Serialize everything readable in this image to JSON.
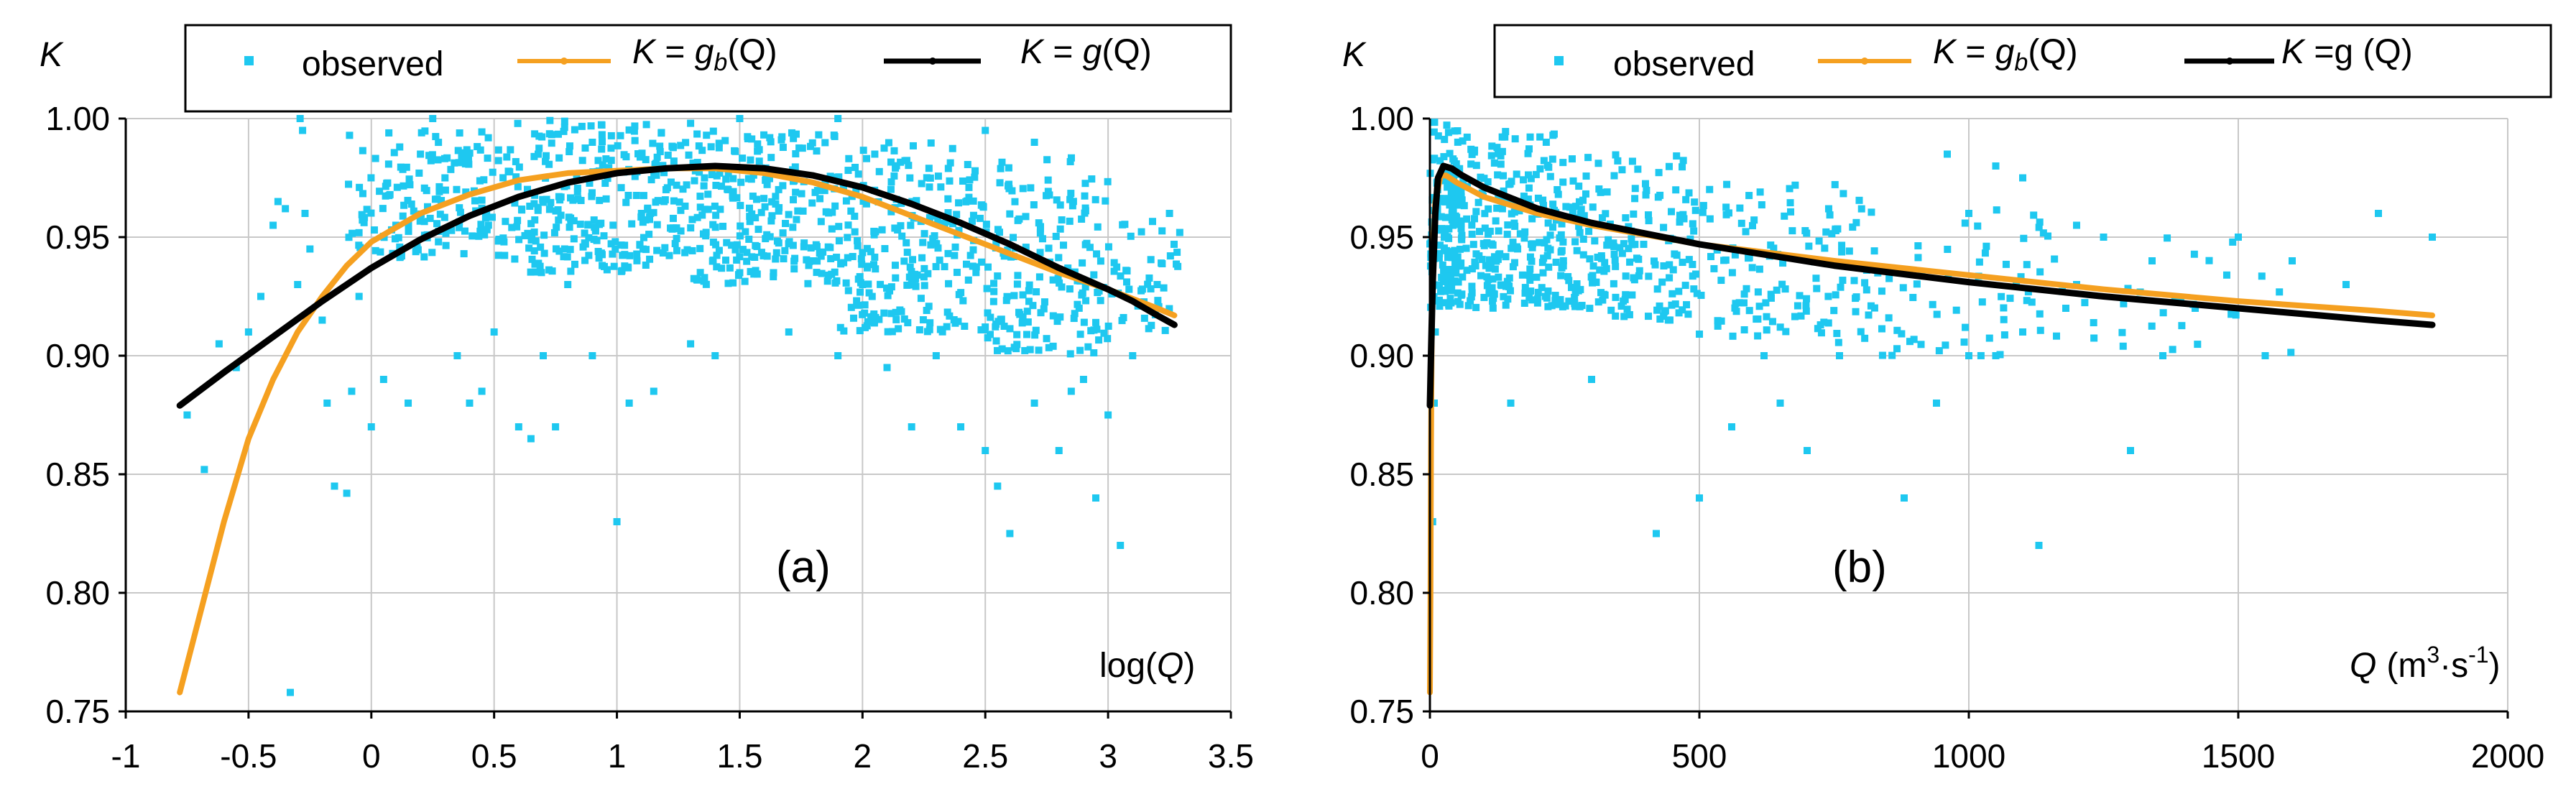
{
  "chart_data": [
    {
      "type": "scatter",
      "panel_label": "(a)",
      "ylabel": "K",
      "xlabel": {
        "pre": "log(",
        "var": "Q",
        "post": ")"
      },
      "xlim": [
        -1,
        3.5
      ],
      "ylim": [
        0.75,
        1.0
      ],
      "x_ticks": [
        "-1",
        "-0.5",
        "0",
        "0.5",
        "1",
        "1.5",
        "2",
        "2.5",
        "3",
        "3.5"
      ],
      "y_ticks": [
        "0.75",
        "0.80",
        "0.85",
        "0.90",
        "0.95",
        "1.00"
      ],
      "grid": true,
      "legend": {
        "placement": "top",
        "items": [
          {
            "key": "obs",
            "text": "observed",
            "color": "#1ec8f0"
          },
          {
            "key": "gb",
            "k": "K",
            "eq": " = ",
            "g": "g",
            "sub": "b",
            "arg": "(Q)",
            "color": "#f5a020"
          },
          {
            "key": "g",
            "k": "K",
            "eq": " = ",
            "g": "g",
            "sub": "",
            "arg": "(Q)",
            "color": "#000000"
          }
        ]
      },
      "series": [
        {
          "name": "observed",
          "color": "#1ec8f0",
          "points": [
            [
              -0.75,
              0.875
            ],
            [
              -0.68,
              0.852
            ],
            [
              -0.62,
              0.905
            ],
            [
              -0.55,
              0.895
            ],
            [
              -0.5,
              0.91
            ],
            [
              -0.45,
              0.925
            ],
            [
              -0.4,
              0.955
            ],
            [
              -0.38,
              0.965
            ],
            [
              -0.35,
              0.962
            ],
            [
              -0.33,
              0.758
            ],
            [
              -0.3,
              0.93
            ],
            [
              -0.29,
              1.0
            ],
            [
              -0.28,
              0.995
            ],
            [
              -0.27,
              0.96
            ],
            [
              -0.25,
              0.945
            ],
            [
              -0.2,
              0.915
            ],
            [
              -0.18,
              0.88
            ],
            [
              -0.15,
              0.845
            ],
            [
              -0.1,
              0.842
            ],
            [
              -0.08,
              0.885
            ],
            [
              -0.05,
              0.925
            ],
            [
              0.0,
              0.87
            ],
            [
              0.05,
              0.89
            ],
            [
              0.1,
              0.955
            ],
            [
              0.15,
              0.88
            ],
            [
              0.2,
              0.985
            ],
            [
              0.25,
              1.0
            ],
            [
              0.3,
              0.975
            ],
            [
              0.35,
              0.9
            ],
            [
              0.4,
              0.88
            ],
            [
              0.45,
              0.885
            ],
            [
              0.5,
              0.91
            ],
            [
              0.6,
              0.87
            ],
            [
              0.65,
              0.865
            ],
            [
              0.7,
              0.9
            ],
            [
              0.75,
              0.87
            ],
            [
              0.8,
              0.93
            ],
            [
              0.9,
              0.9
            ],
            [
              1.0,
              0.83
            ],
            [
              1.05,
              0.88
            ],
            [
              1.1,
              0.96
            ],
            [
              1.15,
              0.885
            ],
            [
              1.2,
              0.97
            ],
            [
              1.3,
              0.905
            ],
            [
              1.4,
              0.9
            ],
            [
              1.5,
              0.935
            ],
            [
              1.7,
              0.91
            ],
            [
              1.8,
              0.94
            ],
            [
              1.9,
              0.9
            ],
            [
              2.0,
              0.93
            ],
            [
              2.1,
              0.895
            ],
            [
              2.2,
              0.87
            ],
            [
              2.3,
              0.9
            ],
            [
              2.4,
              0.87
            ],
            [
              2.5,
              0.86
            ],
            [
              2.55,
              0.845
            ],
            [
              2.6,
              0.825
            ],
            [
              2.7,
              0.88
            ],
            [
              2.8,
              0.86
            ],
            [
              2.85,
              0.885
            ],
            [
              2.9,
              0.89
            ],
            [
              2.95,
              0.84
            ],
            [
              3.0,
              0.875
            ],
            [
              3.05,
              0.82
            ],
            [
              3.1,
              0.9
            ],
            [
              3.2,
              0.93
            ],
            [
              3.25,
              0.96
            ],
            [
              2.7,
              0.99
            ],
            [
              2.5,
              0.995
            ],
            [
              1.5,
              1.0
            ],
            [
              1.9,
              1.0
            ],
            [
              2.05,
              0.985
            ],
            [
              0.9,
              0.99
            ],
            [
              1.3,
              0.998
            ]
          ],
          "cloud": [
            {
              "x0": -0.1,
              "x1": 0.45,
              "ymin": 0.94,
              "ymax": 0.995,
              "n": 130
            },
            {
              "x0": 0.45,
              "x1": 1.2,
              "ymin": 0.935,
              "ymax": 1.0,
              "n": 260
            },
            {
              "x0": 1.2,
              "x1": 1.9,
              "ymin": 0.93,
              "ymax": 0.995,
              "n": 260
            },
            {
              "x0": 1.9,
              "x1": 2.5,
              "ymin": 0.91,
              "ymax": 0.99,
              "n": 230
            },
            {
              "x0": 2.5,
              "x1": 3.0,
              "ymin": 0.9,
              "ymax": 0.985,
              "n": 170
            },
            {
              "x0": 3.0,
              "x1": 3.3,
              "ymin": 0.91,
              "ymax": 0.96,
              "n": 45
            }
          ]
        },
        {
          "name": "K = gb(Q)",
          "color": "#f5a020",
          "points": [
            [
              -0.78,
              0.758
            ],
            [
              -0.7,
              0.79
            ],
            [
              -0.6,
              0.83
            ],
            [
              -0.5,
              0.865
            ],
            [
              -0.4,
              0.89
            ],
            [
              -0.3,
              0.91
            ],
            [
              -0.2,
              0.925
            ],
            [
              -0.1,
              0.938
            ],
            [
              0.0,
              0.948
            ],
            [
              0.2,
              0.96
            ],
            [
              0.4,
              0.968
            ],
            [
              0.6,
              0.974
            ],
            [
              0.8,
              0.977
            ],
            [
              1.0,
              0.978
            ],
            [
              1.2,
              0.979
            ],
            [
              1.4,
              0.979
            ],
            [
              1.6,
              0.977
            ],
            [
              1.8,
              0.973
            ],
            [
              2.0,
              0.967
            ],
            [
              2.2,
              0.959
            ],
            [
              2.4,
              0.951
            ],
            [
              2.6,
              0.943
            ],
            [
              2.8,
              0.935
            ],
            [
              3.0,
              0.928
            ],
            [
              3.2,
              0.92
            ],
            [
              3.27,
              0.917
            ]
          ]
        },
        {
          "name": "K = g(Q)",
          "color": "#000000",
          "points": [
            [
              -0.78,
              0.879
            ],
            [
              -0.6,
              0.893
            ],
            [
              -0.4,
              0.908
            ],
            [
              -0.2,
              0.923
            ],
            [
              0.0,
              0.937
            ],
            [
              0.2,
              0.949
            ],
            [
              0.4,
              0.959
            ],
            [
              0.6,
              0.967
            ],
            [
              0.8,
              0.973
            ],
            [
              1.0,
              0.977
            ],
            [
              1.2,
              0.979
            ],
            [
              1.4,
              0.98
            ],
            [
              1.6,
              0.979
            ],
            [
              1.8,
              0.976
            ],
            [
              2.0,
              0.971
            ],
            [
              2.2,
              0.964
            ],
            [
              2.4,
              0.956
            ],
            [
              2.6,
              0.947
            ],
            [
              2.8,
              0.937
            ],
            [
              3.0,
              0.928
            ],
            [
              3.1,
              0.923
            ],
            [
              3.2,
              0.917
            ],
            [
              3.27,
              0.913
            ]
          ]
        }
      ]
    },
    {
      "type": "scatter",
      "panel_label": "(b)",
      "ylabel": "K",
      "xlabel": {
        "var": "Q",
        "unit_pre": "(m",
        "sup1": "3",
        "dot": "·s",
        "sup2": "-1",
        "unit_post": ")"
      },
      "xlim": [
        0,
        2000
      ],
      "ylim": [
        0.75,
        1.0
      ],
      "x_ticks": [
        "0",
        "500",
        "1000",
        "1500",
        "2000"
      ],
      "y_ticks": [
        "0.75",
        "0.80",
        "0.85",
        "0.90",
        "0.95",
        "1.00"
      ],
      "grid": true,
      "legend": {
        "placement": "top",
        "items": [
          {
            "key": "obs",
            "text": "observed",
            "color": "#1ec8f0"
          },
          {
            "key": "gb",
            "k": "K",
            "eq": " = ",
            "g": "g",
            "sub": "b",
            "arg": "(Q)",
            "color": "#f5a020"
          },
          {
            "key": "g",
            "k": "K",
            "eq": " =g ",
            "g": "",
            "sub": "",
            "arg": "(Q)",
            "color": "#000000"
          }
        ]
      },
      "series": [
        {
          "name": "observed",
          "color": "#1ec8f0",
          "points": [
            [
              5,
              0.83
            ],
            [
              8,
              0.88
            ],
            [
              10,
              0.91
            ],
            [
              420,
              0.825
            ],
            [
              500,
              0.84
            ],
            [
              560,
              0.87
            ],
            [
              700,
              0.86
            ],
            [
              760,
              0.9
            ],
            [
              880,
              0.84
            ],
            [
              940,
              0.88
            ],
            [
              1000,
              0.9
            ],
            [
              1050,
              0.9
            ],
            [
              1100,
              0.91
            ],
            [
              1130,
              0.82
            ],
            [
              1180,
              0.92
            ],
            [
              1200,
              0.93
            ],
            [
              1300,
              0.86
            ],
            [
              1340,
              0.94
            ],
            [
              1360,
              0.9
            ],
            [
              1420,
              0.92
            ],
            [
              1500,
              0.95
            ],
            [
              1550,
              0.9
            ],
            [
              1600,
              0.94
            ],
            [
              1700,
              0.93
            ],
            [
              1760,
              0.96
            ],
            [
              1860,
              0.95
            ],
            [
              1100,
              0.975
            ],
            [
              1050,
              0.98
            ],
            [
              960,
              0.985
            ],
            [
              1000,
              0.96
            ],
            [
              1200,
              0.955
            ],
            [
              1250,
              0.95
            ],
            [
              650,
              0.88
            ],
            [
              620,
              0.9
            ],
            [
              300,
              0.89
            ],
            [
              150,
              0.88
            ]
          ],
          "cloud": [
            {
              "x0": 0,
              "x1": 60,
              "ymin": 0.92,
              "ymax": 1.0,
              "n": 160
            },
            {
              "x0": 60,
              "x1": 250,
              "ymin": 0.92,
              "ymax": 0.995,
              "n": 220
            },
            {
              "x0": 250,
              "x1": 500,
              "ymin": 0.915,
              "ymax": 0.985,
              "n": 180
            },
            {
              "x0": 500,
              "x1": 800,
              "ymin": 0.905,
              "ymax": 0.975,
              "n": 120
            },
            {
              "x0": 800,
              "x1": 1150,
              "ymin": 0.9,
              "ymax": 0.965,
              "n": 70
            },
            {
              "x0": 1150,
              "x1": 1600,
              "ymin": 0.9,
              "ymax": 0.95,
              "n": 30
            }
          ]
        },
        {
          "name": "K = gb(Q)",
          "color": "#f5a020",
          "points": [
            [
              0,
              0.758
            ],
            [
              1,
              0.8
            ],
            [
              2,
              0.86
            ],
            [
              3,
              0.9
            ],
            [
              5,
              0.94
            ],
            [
              10,
              0.965
            ],
            [
              20,
              0.976
            ],
            [
              30,
              0.976
            ],
            [
              50,
              0.973
            ],
            [
              100,
              0.967
            ],
            [
              200,
              0.96
            ],
            [
              300,
              0.955
            ],
            [
              500,
              0.947
            ],
            [
              750,
              0.94
            ],
            [
              1000,
              0.934
            ],
            [
              1250,
              0.928
            ],
            [
              1500,
              0.923
            ],
            [
              1750,
              0.919
            ],
            [
              1860,
              0.917
            ]
          ]
        },
        {
          "name": "K = g(Q)",
          "color": "#000000",
          "points": [
            [
              0,
              0.879
            ],
            [
              2,
              0.9
            ],
            [
              5,
              0.93
            ],
            [
              10,
              0.96
            ],
            [
              15,
              0.975
            ],
            [
              25,
              0.98
            ],
            [
              40,
              0.979
            ],
            [
              60,
              0.976
            ],
            [
              100,
              0.971
            ],
            [
              200,
              0.962
            ],
            [
              300,
              0.956
            ],
            [
              500,
              0.947
            ],
            [
              750,
              0.938
            ],
            [
              1000,
              0.931
            ],
            [
              1250,
              0.925
            ],
            [
              1500,
              0.92
            ],
            [
              1750,
              0.915
            ],
            [
              1860,
              0.913
            ]
          ]
        }
      ]
    }
  ]
}
